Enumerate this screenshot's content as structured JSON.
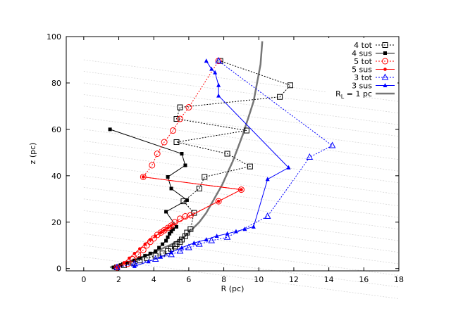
{
  "chart_data": {
    "type": "scatter",
    "xlabel": "R (pc)",
    "ylabel": "z (pc)",
    "xlim": [
      -1,
      18
    ],
    "ylim": [
      -1,
      100
    ],
    "xticks": [
      0,
      2,
      4,
      6,
      8,
      10,
      12,
      14,
      16,
      18
    ],
    "yticks": [
      0,
      20,
      40,
      60,
      80,
      100
    ],
    "grid": false,
    "legend_position": "top-right",
    "series": [
      {
        "name": "4 tot",
        "color": "#000000",
        "marker": "open-square",
        "line": "dotted",
        "x": [
          1.9,
          2.3,
          2.8,
          3.2,
          3.6,
          4.1,
          4.5,
          4.8,
          5.0,
          5.2,
          5.3,
          5.5,
          5.6,
          5.8,
          5.9,
          6.1,
          6.3,
          5.7,
          6.6,
          6.9,
          9.5,
          8.2,
          5.3,
          9.3,
          5.3,
          5.5,
          11.2,
          11.8,
          7.8
        ],
        "y": [
          0.5,
          1.5,
          2.5,
          3.5,
          4.5,
          5.5,
          6.5,
          7.5,
          8.5,
          9.5,
          10.5,
          11.5,
          12.5,
          14.0,
          15.5,
          17.0,
          24.0,
          29.0,
          34.5,
          39.5,
          44.0,
          49.5,
          54.5,
          59.5,
          64.5,
          69.5,
          74.0,
          79.0,
          89.5
        ]
      },
      {
        "name": "4 sus",
        "color": "#000000",
        "marker": "filled-square",
        "line": "solid",
        "x": [
          1.7,
          2.1,
          2.5,
          2.9,
          3.2,
          3.5,
          3.8,
          4.1,
          4.3,
          4.5,
          4.7,
          4.8,
          4.9,
          5.0,
          5.1,
          5.3,
          4.7,
          5.9,
          5.0,
          4.8,
          5.8,
          5.6,
          1.5
        ],
        "y": [
          0.5,
          1.5,
          2.5,
          3.5,
          4.5,
          5.5,
          6.5,
          7.5,
          9.0,
          10.5,
          12.0,
          13.5,
          15.0,
          16.0,
          17.0,
          18.0,
          24.5,
          29.5,
          34.5,
          39.5,
          44.5,
          49.5,
          60.0
        ]
      },
      {
        "name": "5 tot",
        "color": "#ff0000",
        "marker": "open-circle",
        "line": "dotted",
        "x": [
          1.9,
          2.5,
          2.8,
          3.1,
          3.4,
          3.6,
          3.8,
          4.0,
          4.2,
          4.4,
          4.6,
          4.8,
          5.0,
          5.2,
          5.5,
          5.8,
          6.1,
          7.7,
          9.0,
          3.4,
          3.9,
          4.2,
          4.6,
          5.1,
          5.5,
          6.0,
          7.7
        ],
        "y": [
          0.5,
          2.0,
          4.0,
          6.0,
          8.0,
          10.0,
          11.5,
          13.0,
          14.5,
          15.5,
          16.5,
          17.5,
          18.5,
          20.0,
          21.5,
          22.5,
          23.0,
          29.0,
          34.0,
          39.5,
          44.5,
          49.5,
          54.5,
          59.5,
          64.5,
          69.5,
          89.5
        ]
      },
      {
        "name": "5 sus",
        "color": "#ff0000",
        "marker": "filled-circle",
        "line": "solid",
        "x": [
          1.9,
          2.3,
          2.6,
          2.9,
          3.2,
          3.5,
          3.8,
          4.1,
          4.4,
          4.6,
          4.8,
          5.0,
          7.7,
          9.0,
          3.4
        ],
        "y": [
          0.5,
          2.5,
          4.5,
          6.5,
          8.5,
          10.5,
          12.5,
          14.0,
          15.5,
          16.5,
          17.5,
          18.5,
          29.0,
          34.0,
          39.5
        ]
      },
      {
        "name": "3 tot",
        "color": "#0000ff",
        "marker": "open-triangle",
        "line": "dotted",
        "x": [
          1.9,
          2.9,
          4.1,
          5.0,
          5.5,
          6.0,
          6.6,
          7.3,
          8.2,
          10.5,
          12.9,
          14.2,
          7.7
        ],
        "y": [
          0.5,
          2.0,
          4.0,
          6.0,
          7.5,
          9.0,
          10.5,
          12.0,
          13.5,
          22.5,
          48.0,
          53.0,
          89.5
        ]
      },
      {
        "name": "3 sus",
        "color": "#0000ff",
        "marker": "filled-triangle",
        "line": "solid",
        "x": [
          2.9,
          3.7,
          4.4,
          5.0,
          5.6,
          6.3,
          7.0,
          7.6,
          8.2,
          8.7,
          9.2,
          9.7,
          10.5,
          11.7,
          7.7,
          7.7,
          7.5,
          7.3,
          7.0
        ],
        "y": [
          1.0,
          3.0,
          5.0,
          7.0,
          9.0,
          11.0,
          12.5,
          14.0,
          15.0,
          16.0,
          17.0,
          18.0,
          38.5,
          43.5,
          74.5,
          79.0,
          84.5,
          86.0,
          89.5
        ]
      },
      {
        "name": "R_L = 1 pc",
        "color": "#777777",
        "marker": "none",
        "line": "thick-solid",
        "x": [
          1.5,
          2.2,
          3.0,
          3.7,
          4.3,
          4.9,
          5.4,
          5.8,
          6.2,
          6.6,
          7.0,
          7.3,
          7.6,
          7.9,
          8.2,
          8.5,
          8.8,
          9.1,
          9.4,
          9.7,
          9.9,
          10.1,
          10.2
        ],
        "y": [
          0.5,
          2.0,
          4.0,
          6.0,
          8.0,
          10.0,
          12.0,
          14.0,
          17.0,
          20.0,
          24.0,
          28.0,
          32.0,
          36.0,
          41.0,
          46.0,
          52.0,
          58.0,
          65.0,
          72.0,
          80.0,
          88.0,
          98.0
        ]
      }
    ],
    "legend_entries": [
      {
        "label": "4 tot",
        "sub": ""
      },
      {
        "label": "4 sus",
        "sub": ""
      },
      {
        "label": "5 tot",
        "sub": ""
      },
      {
        "label": "5 sus",
        "sub": ""
      },
      {
        "label": "3 tot",
        "sub": ""
      },
      {
        "label": "3 sus",
        "sub": ""
      },
      {
        "label": "R",
        "sub": "L",
        "suffix": " = 1 pc"
      }
    ]
  }
}
